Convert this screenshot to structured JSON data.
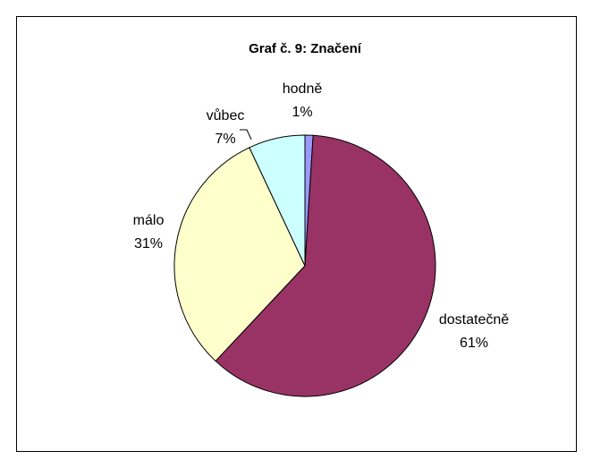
{
  "chart_data": {
    "type": "pie",
    "title": "Graf č. 9: Značení",
    "categories": [
      "hodně",
      "dostatečně",
      "málo",
      "vůbec"
    ],
    "values": [
      1,
      61,
      31,
      7
    ],
    "value_labels": [
      "1%",
      "61%",
      "31%",
      "7%"
    ],
    "colors": [
      "#9999ff",
      "#993366",
      "#ffffcc",
      "#ccffff"
    ]
  }
}
